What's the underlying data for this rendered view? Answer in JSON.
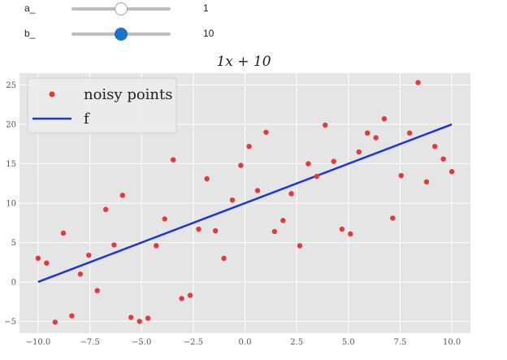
{
  "sliders": [
    {
      "label": "a_",
      "value": "1",
      "fraction": 0.5,
      "handle_color": "#ffffff"
    },
    {
      "label": "b_",
      "value": "10",
      "fraction": 0.5,
      "handle_color": "#1a73c7"
    }
  ],
  "colors": {
    "axes_bg": "#e5e5e5",
    "grid": "#ffffff",
    "points": "#e53935",
    "line": "#1a32e0"
  },
  "chart_data": {
    "type": "scatter",
    "title": "1x + 10",
    "xlim": [
      -10.9,
      10.9
    ],
    "ylim": [
      -6.5,
      26.5
    ],
    "grid": true,
    "legend_position": "top-left",
    "xticks": [
      "−10.0",
      "−7.5",
      "−5.0",
      "−2.5",
      "0.0",
      "2.5",
      "5.0",
      "7.5",
      "10.0"
    ],
    "yticks": [
      "−5",
      "0",
      "5",
      "10",
      "15",
      "20",
      "25"
    ],
    "xtick_values": [
      -10,
      -7.5,
      -5,
      -2.5,
      0,
      2.5,
      5,
      7.5,
      10
    ],
    "ytick_values": [
      -5,
      0,
      5,
      10,
      15,
      20,
      25
    ],
    "series": [
      {
        "name": "noisy points",
        "kind": "scatter",
        "x": [
          -10.0,
          -9.59,
          -9.18,
          -8.78,
          -8.37,
          -7.96,
          -7.55,
          -7.14,
          -6.73,
          -6.33,
          -5.92,
          -5.51,
          -5.1,
          -4.69,
          -4.29,
          -3.88,
          -3.47,
          -3.06,
          -2.65,
          -2.24,
          -1.84,
          -1.43,
          -1.02,
          -0.61,
          -0.2,
          0.2,
          0.61,
          1.02,
          1.43,
          1.84,
          2.24,
          2.65,
          3.06,
          3.47,
          3.88,
          4.29,
          4.69,
          5.1,
          5.51,
          5.92,
          6.33,
          6.73,
          7.14,
          7.55,
          7.96,
          8.37,
          8.78,
          9.18,
          9.59,
          10.0
        ],
        "y": [
          3.0,
          2.4,
          -5.1,
          6.2,
          -4.3,
          1.0,
          3.4,
          -1.1,
          9.2,
          4.7,
          11.0,
          -4.5,
          -5.0,
          -4.6,
          4.6,
          8.0,
          15.5,
          -2.1,
          -1.7,
          6.7,
          13.1,
          6.5,
          3.0,
          10.4,
          14.8,
          17.2,
          11.6,
          19.0,
          6.4,
          7.8,
          11.2,
          4.6,
          15.0,
          13.4,
          19.9,
          15.3,
          6.7,
          6.1,
          16.5,
          18.9,
          18.3,
          20.7,
          8.1,
          13.5,
          18.9,
          25.3,
          12.7,
          17.2,
          15.6,
          14.0
        ]
      },
      {
        "name": "f",
        "kind": "line",
        "x": [
          -10,
          10
        ],
        "y": [
          0,
          20
        ]
      }
    ]
  }
}
